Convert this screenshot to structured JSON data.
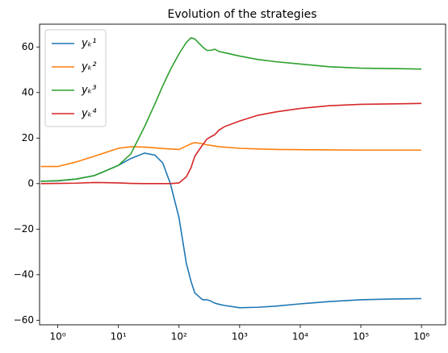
{
  "chart_data": {
    "type": "line",
    "title": "Evolution of the strategies",
    "x": [
      0.525,
      1,
      2,
      4,
      10,
      16,
      27,
      40,
      54,
      72,
      100,
      132,
      158,
      182,
      245,
      288,
      331,
      389,
      457,
      562,
      1000,
      2000,
      4000,
      10000,
      30000,
      100000,
      300000,
      1000000
    ],
    "series": [
      {
        "name": "yₖ¹",
        "color": "#1f77b4",
        "values": [
          1,
          1.2,
          2,
          3.5,
          8,
          11,
          13.4,
          12.5,
          9,
          0,
          -15,
          -35,
          -43,
          -48,
          -51,
          -51,
          -51.5,
          -52.5,
          -53,
          -53.5,
          -54.5,
          -54.3,
          -53.8,
          -52.8,
          -51.8,
          -51,
          -50.7,
          -50.5
        ]
      },
      {
        "name": "yₖ²",
        "color": "#ff7f0e",
        "values": [
          7.5,
          7.5,
          9.5,
          12,
          15.5,
          16.2,
          16,
          15.7,
          15.4,
          15.2,
          15,
          16.5,
          17.5,
          18,
          17.5,
          17,
          16.8,
          16.5,
          16.2,
          16,
          15.5,
          15.2,
          15,
          14.9,
          14.8,
          14.7,
          14.7,
          14.7
        ]
      },
      {
        "name": "yₖ³",
        "color": "#2ca02c",
        "values": [
          1,
          1.3,
          2,
          3.5,
          8,
          13,
          25,
          35,
          43,
          50,
          57,
          62,
          64,
          63.5,
          60,
          58.5,
          58.5,
          59,
          58,
          57.5,
          56,
          54.5,
          53.5,
          52.5,
          51.3,
          50.7,
          50.5,
          50.3
        ]
      },
      {
        "name": "yₖ⁴",
        "color": "#d62728",
        "values": [
          0,
          0.1,
          0.2,
          0.5,
          0.3,
          0.1,
          0,
          0,
          0,
          0,
          0.3,
          3,
          7,
          12,
          17,
          19.5,
          20.5,
          21.5,
          23.5,
          25,
          27.5,
          30,
          31.5,
          33,
          34.2,
          34.8,
          35,
          35.2
        ]
      }
    ],
    "xscale": "log",
    "xlim": [
      0.5,
      2500000
    ],
    "xticks": [
      {
        "value": 1,
        "label": "10⁰"
      },
      {
        "value": 10,
        "label": "10¹"
      },
      {
        "value": 100,
        "label": "10²"
      },
      {
        "value": 1000,
        "label": "10³"
      },
      {
        "value": 10000,
        "label": "10⁴"
      },
      {
        "value": 100000,
        "label": "10⁵"
      },
      {
        "value": 1000000,
        "label": "10⁶"
      }
    ],
    "ylim": [
      -62,
      70
    ],
    "yticks": [
      {
        "value": -60,
        "label": "−60"
      },
      {
        "value": -40,
        "label": "−40"
      },
      {
        "value": -20,
        "label": "−20"
      },
      0,
      20,
      40,
      60
    ],
    "grid": false,
    "legend": "upper-left"
  }
}
